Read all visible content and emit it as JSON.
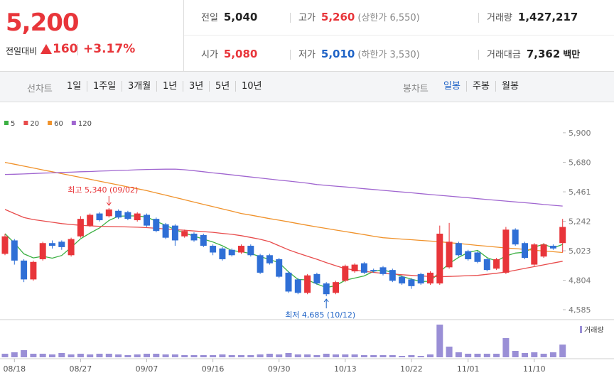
{
  "header": {
    "price": "5,200",
    "change_label": "전일대비",
    "change": "160",
    "change_pct": "+3.17%",
    "stats": [
      [
        {
          "label": "전일",
          "value": "5,040",
          "color": "#222222"
        },
        {
          "label": "고가",
          "value": "5,260",
          "note": "(상한가 6,550)",
          "color": "#e8353a"
        },
        {
          "label": "거래량",
          "value": "1,427,217",
          "color": "#222222"
        }
      ],
      [
        {
          "label": "시가",
          "value": "5,080",
          "color": "#e8353a"
        },
        {
          "label": "저가",
          "value": "5,010",
          "note": "(하한가 3,530)",
          "color": "#1f63c6"
        },
        {
          "label": "거래대금",
          "value": "7,362",
          "unit": "백만",
          "color": "#222222"
        }
      ]
    ]
  },
  "toolbar": {
    "line_label": "선차트",
    "line_periods": [
      "1일",
      "1주일",
      "3개월",
      "1년",
      "3년",
      "5년",
      "10년"
    ],
    "candle_label": "봉차트",
    "candle_periods": [
      {
        "label": "일봉",
        "selected": true
      },
      {
        "label": "주봉",
        "selected": false
      },
      {
        "label": "월봉",
        "selected": false
      }
    ]
  },
  "chart_data": {
    "type": "candlestick",
    "categories": [
      null,
      "08/18",
      null,
      null,
      null,
      null,
      null,
      null,
      "08/27",
      null,
      null,
      null,
      null,
      null,
      null,
      "09/07",
      null,
      null,
      null,
      null,
      null,
      null,
      "09/16",
      null,
      null,
      null,
      null,
      null,
      null,
      "09/30",
      null,
      null,
      null,
      null,
      null,
      null,
      "10/13",
      null,
      null,
      null,
      null,
      null,
      null,
      "10/22",
      null,
      null,
      null,
      null,
      null,
      "11/01",
      null,
      null,
      null,
      null,
      null,
      null,
      "11/10",
      null,
      null,
      null
    ],
    "open": [
      5000,
      5100,
      4950,
      4810,
      4960,
      5080,
      5090,
      4990,
      5130,
      5210,
      5300,
      5280,
      5320,
      5310,
      5250,
      5290,
      5260,
      5220,
      5210,
      5130,
      5150,
      5140,
      5060,
      5040,
      5030,
      5010,
      5060,
      4990,
      4990,
      4960,
      4860,
      4810,
      4710,
      4850,
      4780,
      4710,
      4800,
      4870,
      4930,
      4880,
      4900,
      4880,
      4830,
      4810,
      4850,
      4780,
      4780,
      4900,
      5080,
      5020,
      5010,
      4960,
      4890,
      4860,
      5180,
      5080,
      4920,
      4980,
      5060,
      5080
    ],
    "high": [
      5150,
      5110,
      4960,
      4950,
      5090,
      5100,
      5100,
      5120,
      5280,
      5300,
      5310,
      5340,
      5330,
      5320,
      5310,
      5300,
      5270,
      5230,
      5220,
      5180,
      5160,
      5150,
      5070,
      5050,
      5040,
      5070,
      5070,
      5000,
      5000,
      4970,
      4870,
      4820,
      4850,
      4860,
      4790,
      4800,
      4920,
      4930,
      4940,
      4890,
      4910,
      4890,
      4840,
      4820,
      4860,
      4870,
      5210,
      5230,
      5090,
      5030,
      5020,
      4970,
      4970,
      5200,
      5190,
      5090,
      5080,
      5080,
      5070,
      5260
    ],
    "low": [
      4990,
      4920,
      4790,
      4800,
      4950,
      5040,
      5030,
      4980,
      5120,
      5200,
      5240,
      5270,
      5260,
      5250,
      5240,
      5200,
      5160,
      5110,
      5060,
      5120,
      5090,
      5050,
      4990,
      4950,
      4980,
      5000,
      4980,
      4850,
      4920,
      4820,
      4710,
      4700,
      4700,
      4770,
      4685,
      4700,
      4790,
      4860,
      4850,
      4860,
      4840,
      4790,
      4770,
      4740,
      4770,
      4770,
      4770,
      4890,
      4980,
      4950,
      4930,
      4870,
      4880,
      4850,
      5060,
      4960,
      4910,
      4970,
      5030,
      5010
    ],
    "close": [
      5130,
      4950,
      4810,
      4940,
      5080,
      5060,
      5050,
      5110,
      5260,
      5290,
      5250,
      5330,
      5270,
      5260,
      5300,
      5210,
      5170,
      5120,
      5100,
      5170,
      5100,
      5060,
      5010,
      4960,
      4990,
      5060,
      4990,
      4860,
      4930,
      4830,
      4720,
      4710,
      4840,
      4780,
      4700,
      4790,
      4910,
      4920,
      4860,
      4870,
      4850,
      4800,
      4780,
      4760,
      4780,
      4860,
      5150,
      5090,
      4990,
      4960,
      4940,
      4880,
      4960,
      5180,
      5070,
      4970,
      5070,
      5070,
      5040,
      5200
    ],
    "up_color": "#e8353a",
    "down_color": "#2f6fd6",
    "moving_averages": [
      {
        "name": "5",
        "color": "#3cb043",
        "values": [
          5150,
          5080,
          5000,
          4970,
          4982,
          4968,
          4988,
          5048,
          5112,
          5154,
          5192,
          5248,
          5280,
          5282,
          5282,
          5274,
          5242,
          5212,
          5180,
          5154,
          5132,
          5110,
          5088,
          5060,
          5024,
          5016,
          5002,
          4980,
          4958,
          4934,
          4866,
          4810,
          4806,
          4776,
          4750,
          4764,
          4804,
          4820,
          4836,
          4870,
          4882,
          4860,
          4832,
          4812,
          4794,
          4796,
          4866,
          4928,
          4974,
          5010,
          5026,
          4972,
          4946,
          4984,
          5006,
          5012,
          5050,
          5072,
          5044,
          5070
        ]
      },
      {
        "name": "20",
        "color": "#e84c4c",
        "values": [
          5330,
          5300,
          5270,
          5255,
          5245,
          5235,
          5225,
          5218,
          5212,
          5208,
          5205,
          5203,
          5202,
          5200,
          5198,
          5195,
          5190,
          5185,
          5180,
          5175,
          5170,
          5165,
          5160,
          5152,
          5145,
          5135,
          5122,
          5108,
          5090,
          5060,
          5030,
          5005,
          4982,
          4960,
          4935,
          4912,
          4890,
          4880,
          4870,
          4862,
          4855,
          4850,
          4845,
          4840,
          4836,
          4832,
          4830,
          4832,
          4835,
          4838,
          4840,
          4848,
          4856,
          4865,
          4878,
          4892,
          4905,
          4918,
          4932,
          4945
        ]
      },
      {
        "name": "60",
        "color": "#f0922b",
        "values": [
          5680,
          5666,
          5652,
          5638,
          5624,
          5610,
          5596,
          5582,
          5568,
          5554,
          5540,
          5526,
          5512,
          5498,
          5484,
          5470,
          5453,
          5436,
          5419,
          5402,
          5385,
          5368,
          5351,
          5334,
          5317,
          5300,
          5288,
          5275,
          5262,
          5250,
          5238,
          5225,
          5212,
          5200,
          5189,
          5177,
          5166,
          5154,
          5143,
          5131,
          5120,
          5115,
          5110,
          5105,
          5100,
          5095,
          5090,
          5083,
          5077,
          5070,
          5063,
          5057,
          5050,
          5044,
          5039,
          5033,
          5027,
          5021,
          5016,
          5010
        ]
      },
      {
        "name": "120",
        "color": "#a066d0",
        "values": [
          5590,
          5592,
          5594,
          5597,
          5600,
          5602,
          5605,
          5607,
          5610,
          5612,
          5615,
          5617,
          5620,
          5622,
          5625,
          5627,
          5628,
          5629,
          5630,
          5625,
          5618,
          5610,
          5602,
          5595,
          5587,
          5579,
          5571,
          5564,
          5556,
          5548,
          5541,
          5533,
          5525,
          5515,
          5509,
          5503,
          5497,
          5491,
          5484,
          5478,
          5472,
          5466,
          5460,
          5454,
          5447,
          5441,
          5435,
          5429,
          5423,
          5417,
          5410,
          5404,
          5398,
          5392,
          5386,
          5380,
          5374,
          5367,
          5361,
          5355
        ]
      }
    ],
    "volume": {
      "name": "거래량",
      "color": "#9a8fd6",
      "ylim": [
        0,
        4000000
      ],
      "values": [
        400000,
        560000,
        800000,
        400000,
        400000,
        320000,
        480000,
        320000,
        400000,
        320000,
        400000,
        400000,
        320000,
        240000,
        320000,
        400000,
        400000,
        320000,
        320000,
        240000,
        240000,
        240000,
        240000,
        320000,
        240000,
        240000,
        240000,
        320000,
        400000,
        320000,
        480000,
        320000,
        320000,
        240000,
        400000,
        320000,
        320000,
        320000,
        240000,
        240000,
        240000,
        240000,
        160000,
        240000,
        160000,
        320000,
        3680000,
        1200000,
        560000,
        400000,
        400000,
        400000,
        400000,
        2160000,
        720000,
        480000,
        560000,
        400000,
        560000,
        1427217
      ]
    },
    "ylim": [
      4527,
      5947
    ],
    "yticks": [
      {
        "value": 4585,
        "label": "4,585"
      },
      {
        "value": 4804,
        "label": "4,804"
      },
      {
        "value": 5023,
        "label": "5,023"
      },
      {
        "value": 5242,
        "label": "5,242"
      },
      {
        "value": 5461,
        "label": "5,461"
      },
      {
        "value": 5680,
        "label": "5,680"
      },
      {
        "value": 5900,
        "label": "5,900"
      }
    ],
    "grid": false,
    "high_annotation": "최고 5,340 (09/02)",
    "low_annotation": "최저 4,685 (10/12)"
  }
}
